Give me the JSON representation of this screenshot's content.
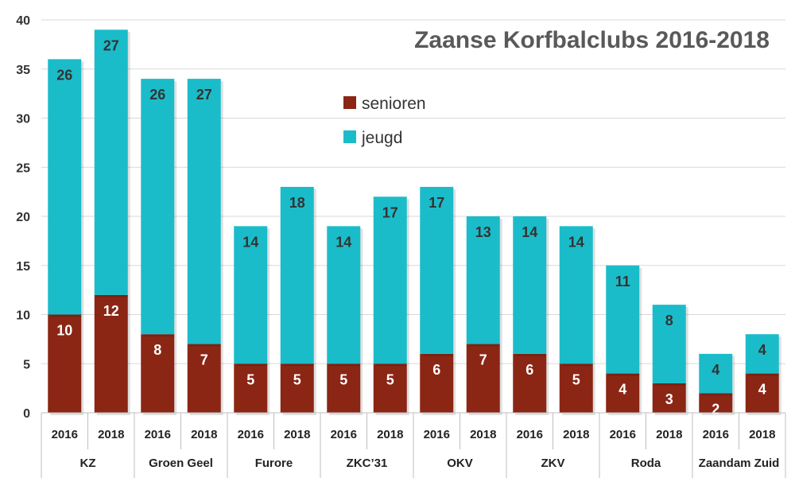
{
  "chart_data": {
    "type": "bar",
    "stacked": true,
    "title": "Zaanse Korfbalclubs 2016-2018",
    "ylim": [
      0,
      40
    ],
    "yticks": [
      0,
      5,
      10,
      15,
      20,
      25,
      30,
      35,
      40
    ],
    "grid": true,
    "legend_position": "upper-center",
    "groups": [
      "KZ",
      "Groen Geel",
      "Furore",
      "ZKC’31",
      "OKV",
      "ZKV",
      "Roda",
      "Zaandam Zuid"
    ],
    "years": [
      "2016",
      "2018"
    ],
    "categories": [
      "KZ 2016",
      "KZ 2018",
      "Groen Geel 2016",
      "Groen Geel 2018",
      "Furore 2016",
      "Furore 2018",
      "ZKC’31 2016",
      "ZKC’31 2018",
      "OKV 2016",
      "OKV 2018",
      "ZKV 2016",
      "ZKV 2018",
      "Roda 2016",
      "Roda 2018",
      "Zaandam Zuid 2016",
      "Zaandam Zuid 2018"
    ],
    "series": [
      {
        "name": "senioren",
        "color": "#8B2614",
        "label_color": "#ffffff",
        "values": [
          10,
          12,
          8,
          7,
          5,
          5,
          5,
          5,
          6,
          7,
          6,
          5,
          4,
          3,
          2,
          4
        ]
      },
      {
        "name": "jeugd",
        "color": "#1BBCC9",
        "label_color": "#333333",
        "values": [
          26,
          27,
          26,
          27,
          14,
          18,
          14,
          17,
          17,
          13,
          14,
          14,
          11,
          8,
          4,
          4
        ]
      }
    ]
  }
}
